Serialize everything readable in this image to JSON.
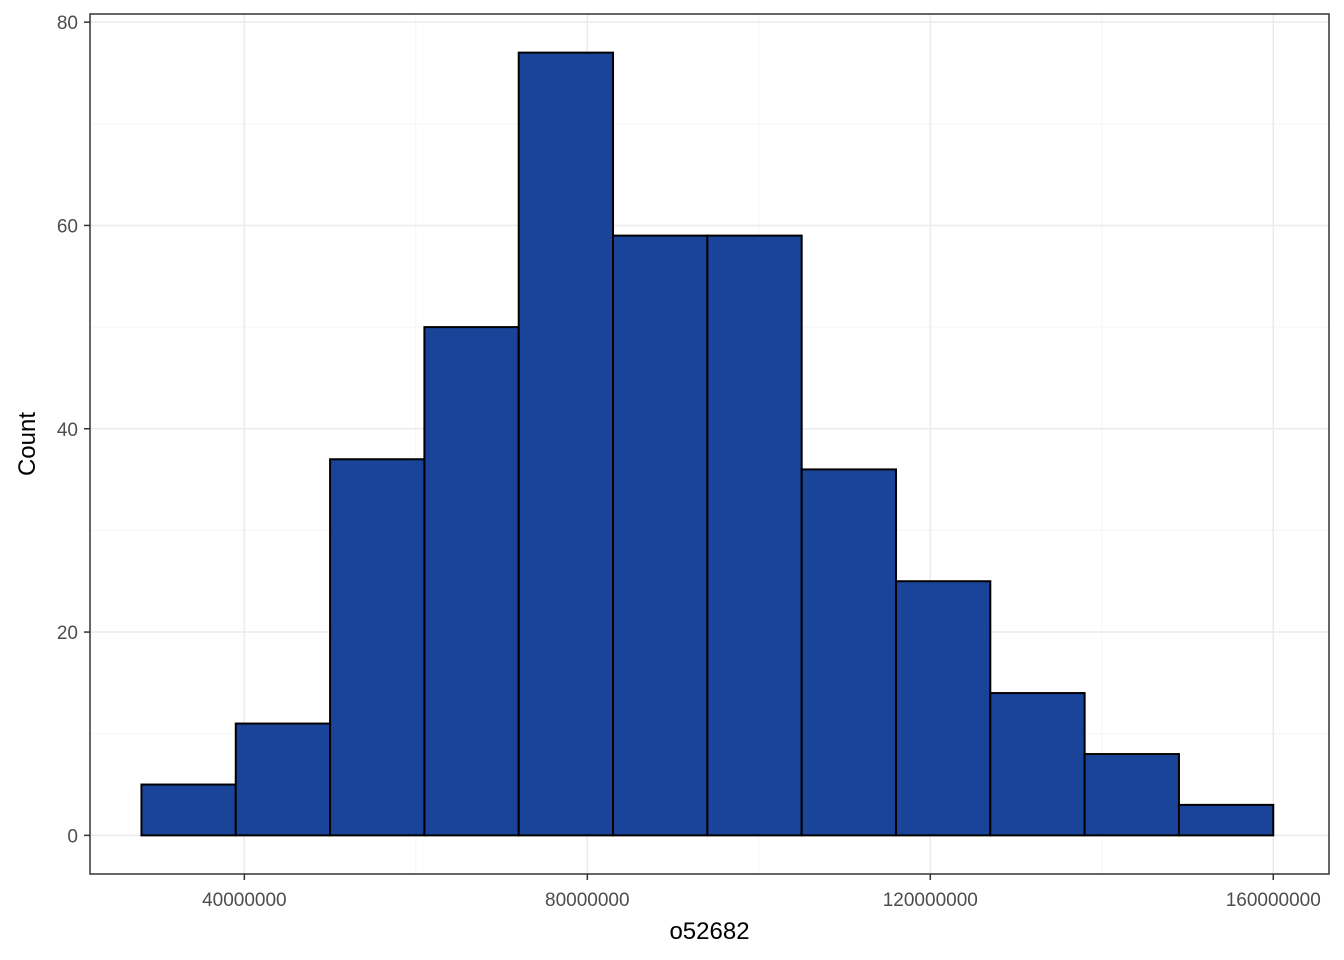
{
  "chart_data": {
    "type": "bar",
    "subtype": "histogram",
    "xlabel": "o52682",
    "ylabel": "Count",
    "bin_width": 11000000,
    "bins": [
      {
        "x0": 28000000,
        "x1": 39000000,
        "count": 5
      },
      {
        "x0": 39000000,
        "x1": 50000000,
        "count": 11
      },
      {
        "x0": 50000000,
        "x1": 61000000,
        "count": 37
      },
      {
        "x0": 61000000,
        "x1": 72000000,
        "count": 50
      },
      {
        "x0": 72000000,
        "x1": 83000000,
        "count": 77
      },
      {
        "x0": 83000000,
        "x1": 94000000,
        "count": 59
      },
      {
        "x0": 94000000,
        "x1": 105000000,
        "count": 59
      },
      {
        "x0": 105000000,
        "x1": 116000000,
        "count": 36
      },
      {
        "x0": 116000000,
        "x1": 127000000,
        "count": 25
      },
      {
        "x0": 127000000,
        "x1": 138000000,
        "count": 14
      },
      {
        "x0": 138000000,
        "x1": 149000000,
        "count": 8
      },
      {
        "x0": 149000000,
        "x1": 160000000,
        "count": 3
      }
    ],
    "xlim": [
      22000000,
      166500000
    ],
    "ylim": [
      -3.8,
      80.8
    ],
    "x_ticks": [
      40000000,
      80000000,
      120000000,
      160000000
    ],
    "x_tick_labels": [
      "40000000",
      "80000000",
      "120000000",
      "160000000"
    ],
    "y_ticks": [
      0,
      20,
      40,
      60,
      80
    ],
    "y_tick_labels": [
      "0",
      "20",
      "40",
      "60",
      "80"
    ],
    "grid": true,
    "legend": "none",
    "colors": {
      "fill": "#19449A",
      "outline": "#000000",
      "grid_major": "#EBEBEB",
      "grid_minor": "#F5F5F5",
      "panel_border": "#333333",
      "tick_text": "#4D4D4D"
    }
  }
}
